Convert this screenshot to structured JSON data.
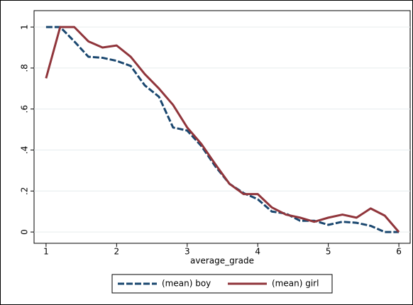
{
  "chart_data": {
    "type": "line",
    "x_label": "average_grade",
    "x": [
      1,
      1.2,
      1.4,
      1.6,
      1.8,
      2,
      2.2,
      2.4,
      2.6,
      2.8,
      3,
      3.2,
      3.4,
      3.6,
      3.8,
      4,
      4.2,
      4.4,
      4.6,
      4.8,
      5,
      5.2,
      5.4,
      5.6,
      5.8,
      6
    ],
    "series": [
      {
        "name": "(mean) boy",
        "color": "#1a476f",
        "dash": true,
        "values": [
          1,
          1,
          0.93,
          0.855,
          0.85,
          0.835,
          0.81,
          0.715,
          0.66,
          0.51,
          0.495,
          0.42,
          0.32,
          0.235,
          0.19,
          0.16,
          0.1,
          0.09,
          0.055,
          0.055,
          0.035,
          0.05,
          0.045,
          0.03,
          0,
          0
        ]
      },
      {
        "name": "(mean) girl",
        "color": "#90353b",
        "dash": false,
        "values": [
          0.75,
          1,
          1,
          0.93,
          0.9,
          0.91,
          0.855,
          0.77,
          0.7,
          0.62,
          0.51,
          0.43,
          0.33,
          0.235,
          0.185,
          0.185,
          0.12,
          0.085,
          0.07,
          0.05,
          0.07,
          0.085,
          0.07,
          0.115,
          0.08,
          0
        ]
      }
    ],
    "xlim": [
      0.83,
      6.16
    ],
    "ylim": [
      -0.055,
      1.08
    ],
    "xticks": [
      1,
      2,
      3,
      4,
      5,
      6
    ],
    "yticks": [
      0,
      {
        "value": 0.2,
        "label": ".2"
      },
      {
        "value": 0.4,
        "label": ".4"
      },
      {
        "value": 0.6,
        "label": ".6"
      },
      {
        "value": 0.8,
        "label": ".8"
      },
      1
    ],
    "grid": true
  }
}
